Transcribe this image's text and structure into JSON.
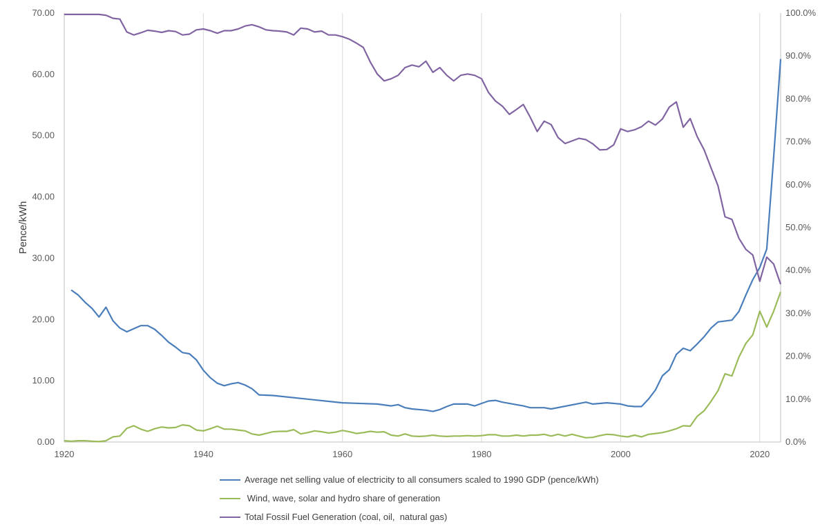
{
  "chart_data": {
    "type": "line",
    "title": "",
    "xlabel": "",
    "ylabel": "Pence/kWh",
    "xlim": [
      1920,
      2023
    ],
    "ylim": [
      0,
      70
    ],
    "y2lim": [
      0,
      100
    ],
    "x_ticks": [
      "1920",
      "1940",
      "1960",
      "1980",
      "2000",
      "2020"
    ],
    "y_ticks": [
      "0.00",
      "10.00",
      "20.00",
      "30.00",
      "40.00",
      "50.00",
      "60.00",
      "70.00"
    ],
    "y2_ticks": [
      "0.0%",
      "10.0%",
      "20.0%",
      "30.0%",
      "40.0%",
      "50.0%",
      "60.0%",
      "70.0%",
      "80.0%",
      "90.0%",
      "100.0%"
    ],
    "grid": "vertical",
    "legend_position": "bottom",
    "series": [
      {
        "name": "Average net selling value of electricity to all consumers scaled to 1990 GDP (pence/kWh)",
        "axis": "left",
        "color": "#4A7EBB",
        "x": [
          1921,
          1922,
          1923,
          1924,
          1925,
          1926,
          1927,
          1928,
          1929,
          1930,
          1931,
          1932,
          1933,
          1934,
          1935,
          1936,
          1937,
          1938,
          1939,
          1940,
          1941,
          1942,
          1943,
          1944,
          1945,
          1946,
          1947,
          1948,
          1950,
          1955,
          1960,
          1965,
          1967,
          1968,
          1969,
          1970,
          1972,
          1973,
          1974,
          1975,
          1976,
          1977,
          1978,
          1979,
          1980,
          1981,
          1982,
          1983,
          1985,
          1986,
          1987,
          1988,
          1989,
          1990,
          1995,
          1996,
          1997,
          1998,
          2000,
          2001,
          2002,
          2003,
          2004,
          2005,
          2006,
          2007,
          2008,
          2009,
          2010,
          2011,
          2012,
          2013,
          2014,
          2016,
          2017,
          2018,
          2019,
          2020,
          2021,
          2022,
          2023
        ],
        "values": [
          24.8,
          24.0,
          22.8,
          21.8,
          20.4,
          22.0,
          19.8,
          18.6,
          18.0,
          18.5,
          19.0,
          19.0,
          18.4,
          17.4,
          16.3,
          15.5,
          14.6,
          14.4,
          13.4,
          11.7,
          10.5,
          9.6,
          9.2,
          9.5,
          9.7,
          9.3,
          8.7,
          7.7,
          7.6,
          7.0,
          6.4,
          6.2,
          5.9,
          6.1,
          5.6,
          5.4,
          5.2,
          5.0,
          5.3,
          5.8,
          6.2,
          6.2,
          6.2,
          5.9,
          6.3,
          6.7,
          6.8,
          6.5,
          6.1,
          5.9,
          5.6,
          5.6,
          5.6,
          5.4,
          6.5,
          6.2,
          6.3,
          6.4,
          6.2,
          5.9,
          5.8,
          5.8,
          7.0,
          8.5,
          10.8,
          11.8,
          14.3,
          15.3,
          14.9,
          16.0,
          17.2,
          18.6,
          19.6,
          19.9,
          21.3,
          24.0,
          26.5,
          28.5,
          31.5,
          46.5,
          62.5
        ]
      },
      {
        "name": "Wind, wave, solar and hydro share of generation",
        "axis": "right",
        "color": "#9BBB59",
        "x": [
          1920,
          1921,
          1922,
          1923,
          1924,
          1925,
          1926,
          1927,
          1928,
          1929,
          1930,
          1931,
          1932,
          1933,
          1934,
          1935,
          1936,
          1937,
          1938,
          1939,
          1940,
          1941,
          1942,
          1943,
          1944,
          1945,
          1946,
          1947,
          1948,
          1949,
          1950,
          1951,
          1952,
          1953,
          1954,
          1955,
          1956,
          1957,
          1958,
          1959,
          1960,
          1961,
          1962,
          1963,
          1964,
          1965,
          1966,
          1967,
          1968,
          1969,
          1970,
          1971,
          1972,
          1973,
          1974,
          1975,
          1976,
          1977,
          1978,
          1979,
          1980,
          1981,
          1982,
          1983,
          1984,
          1985,
          1986,
          1987,
          1988,
          1989,
          1990,
          1991,
          1992,
          1993,
          1994,
          1995,
          1996,
          1997,
          1998,
          1999,
          2000,
          2001,
          2002,
          2003,
          2004,
          2005,
          2006,
          2007,
          2008,
          2009,
          2010,
          2011,
          2012,
          2013,
          2014,
          2015,
          2016,
          2017,
          2018,
          2019,
          2020,
          2021,
          2022,
          2023
        ],
        "values": [
          0.3,
          0.2,
          0.3,
          0.3,
          0.2,
          0.1,
          0.3,
          1.2,
          1.4,
          3.2,
          3.8,
          3.0,
          2.5,
          3.1,
          3.5,
          3.3,
          3.4,
          4.0,
          3.8,
          2.8,
          2.6,
          3.1,
          3.7,
          3.0,
          3.0,
          2.8,
          2.6,
          1.9,
          1.6,
          2.0,
          2.4,
          2.5,
          2.5,
          2.9,
          1.9,
          2.2,
          2.6,
          2.4,
          2.1,
          2.3,
          2.7,
          2.4,
          2.0,
          2.2,
          2.5,
          2.3,
          2.4,
          1.6,
          1.4,
          1.9,
          1.4,
          1.3,
          1.4,
          1.6,
          1.4,
          1.3,
          1.4,
          1.4,
          1.5,
          1.4,
          1.5,
          1.7,
          1.7,
          1.4,
          1.4,
          1.6,
          1.4,
          1.6,
          1.6,
          1.8,
          1.4,
          1.8,
          1.4,
          1.8,
          1.4,
          1.0,
          1.1,
          1.5,
          1.8,
          1.7,
          1.4,
          1.2,
          1.6,
          1.2,
          1.8,
          2.0,
          2.2,
          2.6,
          3.1,
          3.8,
          3.7,
          6.0,
          7.3,
          9.5,
          12.0,
          15.9,
          15.4,
          19.8,
          23.0,
          25.0,
          30.5,
          26.8,
          30.5,
          35.0
        ]
      },
      {
        "name": "Total Fossil Fuel Generation (coal, oil,  natural gas)",
        "axis": "right",
        "color": "#8064A2",
        "x": [
          1920,
          1921,
          1922,
          1923,
          1924,
          1925,
          1926,
          1927,
          1928,
          1929,
          1930,
          1931,
          1932,
          1933,
          1934,
          1935,
          1936,
          1937,
          1938,
          1939,
          1940,
          1941,
          1942,
          1943,
          1944,
          1945,
          1946,
          1947,
          1948,
          1949,
          1950,
          1951,
          1952,
          1953,
          1954,
          1955,
          1956,
          1957,
          1958,
          1959,
          1960,
          1961,
          1962,
          1963,
          1964,
          1965,
          1966,
          1967,
          1968,
          1969,
          1970,
          1971,
          1972,
          1973,
          1974,
          1975,
          1976,
          1977,
          1978,
          1979,
          1980,
          1981,
          1982,
          1983,
          1984,
          1985,
          1986,
          1987,
          1988,
          1989,
          1990,
          1991,
          1992,
          1993,
          1994,
          1995,
          1996,
          1997,
          1998,
          1999,
          2000,
          2001,
          2002,
          2003,
          2004,
          2005,
          2006,
          2007,
          2008,
          2009,
          2010,
          2011,
          2012,
          2013,
          2014,
          2015,
          2016,
          2017,
          2018,
          2019,
          2020,
          2021,
          2022,
          2023
        ],
        "values": [
          99.7,
          99.7,
          99.7,
          99.7,
          99.7,
          99.7,
          99.5,
          98.8,
          98.6,
          95.6,
          94.9,
          95.4,
          96.0,
          95.8,
          95.5,
          95.9,
          95.7,
          94.9,
          95.1,
          96.1,
          96.3,
          95.9,
          95.3,
          95.9,
          95.9,
          96.3,
          97.0,
          97.3,
          96.8,
          96.1,
          95.9,
          95.8,
          95.6,
          94.9,
          96.5,
          96.3,
          95.6,
          95.8,
          94.9,
          94.9,
          94.5,
          93.9,
          93.0,
          92.0,
          88.6,
          85.8,
          84.2,
          84.7,
          85.5,
          87.3,
          87.9,
          87.5,
          88.8,
          86.2,
          87.3,
          85.5,
          84.2,
          85.5,
          85.8,
          85.5,
          84.7,
          81.5,
          79.5,
          78.3,
          76.4,
          77.5,
          78.7,
          75.7,
          72.4,
          74.8,
          74.0,
          71.0,
          69.6,
          70.2,
          70.8,
          70.5,
          69.5,
          68.1,
          68.2,
          69.3,
          73.0,
          72.4,
          72.8,
          73.5,
          74.8,
          73.9,
          75.3,
          78.1,
          79.3,
          73.4,
          75.4,
          71.2,
          68.1,
          63.9,
          59.7,
          52.5,
          51.9,
          47.5,
          44.9,
          43.6,
          37.5,
          43.1,
          41.5,
          36.8
        ]
      }
    ]
  },
  "legend": {
    "items": [
      {
        "label": "Average net selling value of electricity to all consumers scaled to 1990 GDP (pence/kWh)",
        "color": "#4A7EBB"
      },
      {
        "label": " Wind, wave, solar and hydro share of generation",
        "color": "#9BBB59"
      },
      {
        "label": "Total Fossil Fuel Generation (coal, oil,  natural gas)",
        "color": "#8064A2"
      }
    ]
  }
}
